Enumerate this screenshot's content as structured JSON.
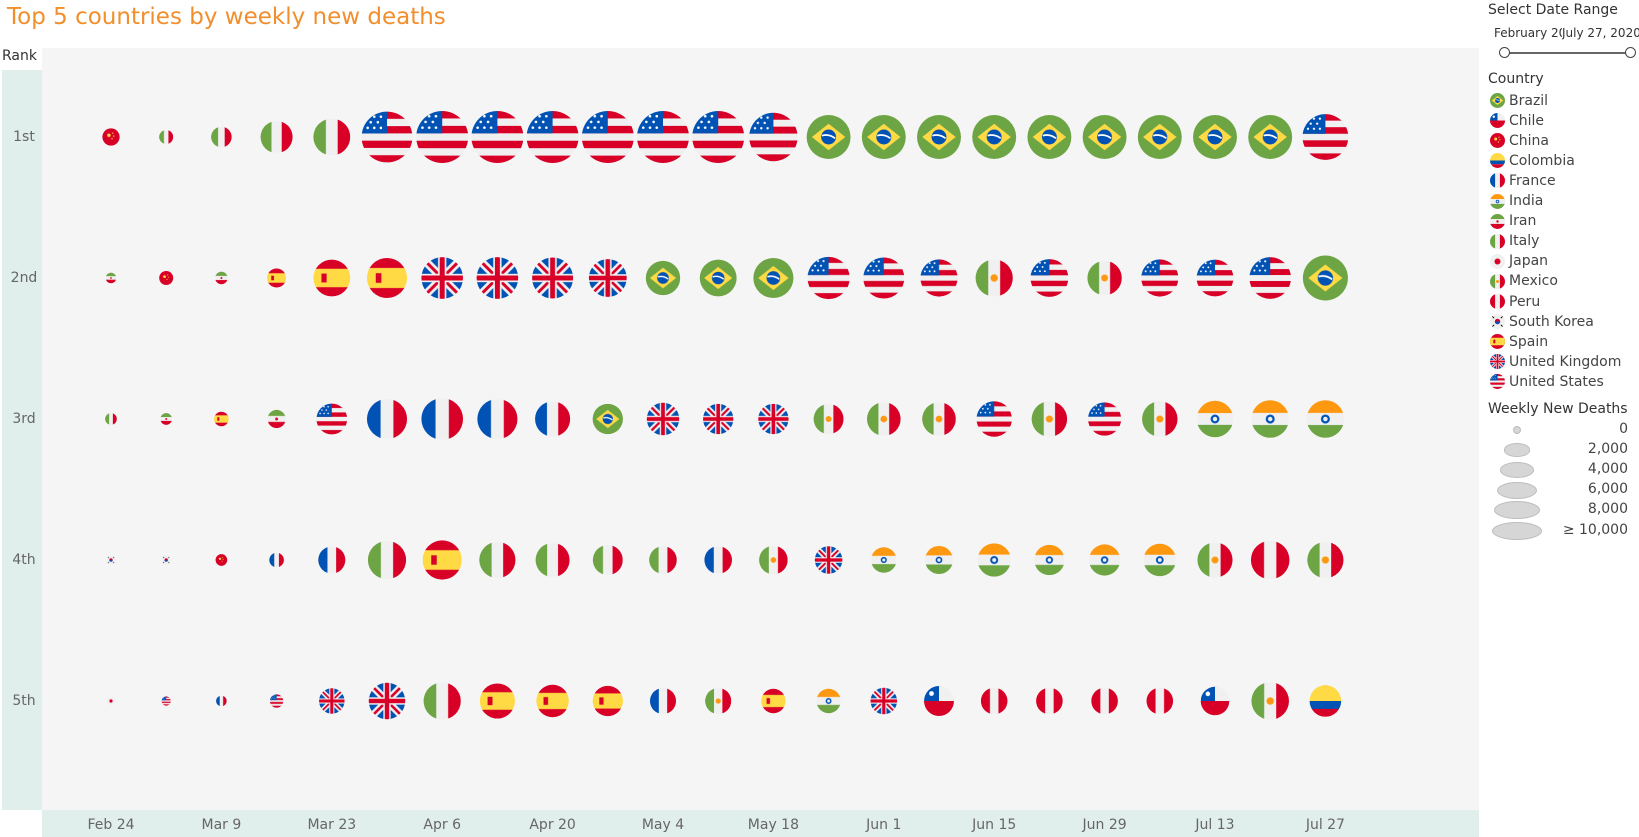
{
  "chart_data": {
    "type": "scatter",
    "title": "Top 5 countries by weekly new deaths",
    "ylabel": "Rank",
    "ranks": [
      "1st",
      "2nd",
      "3rd",
      "4th",
      "5th"
    ],
    "weeks": [
      "Feb 24",
      "Mar 2",
      "Mar 9",
      "Mar 16",
      "Mar 23",
      "Mar 30",
      "Apr 6",
      "Apr 13",
      "Apr 20",
      "Apr 27",
      "May 4",
      "May 11",
      "May 18",
      "May 25",
      "Jun 1",
      "Jun 8",
      "Jun 15",
      "Jun 22",
      "Jun 29",
      "Jul 6",
      "Jul 13",
      "Jul 20",
      "Jul 27"
    ],
    "x_tick_labels": [
      "Feb 24",
      "Mar 9",
      "Mar 23",
      "Apr 6",
      "Apr 20",
      "May 4",
      "May 18",
      "Jun 1",
      "Jun 15",
      "Jun 29",
      "Jul 13",
      "Jul 27"
    ],
    "size_field": "Weekly New Deaths",
    "series": [
      {
        "rank": "1st",
        "countries": [
          "China",
          "Italy",
          "Italy",
          "Italy",
          "Italy",
          "United States",
          "United States",
          "United States",
          "United States",
          "United States",
          "United States",
          "United States",
          "United States",
          "Brazil",
          "Brazil",
          "Brazil",
          "Brazil",
          "Brazil",
          "Brazil",
          "Brazil",
          "Brazil",
          "Brazil",
          "United States"
        ],
        "values": [
          600,
          300,
          1000,
          3200,
          4500,
          9500,
          10000,
          10000,
          10000,
          10000,
          10000,
          10000,
          8500,
          6800,
          6800,
          6800,
          6800,
          6800,
          6800,
          6800,
          6800,
          6800,
          7500
        ]
      },
      {
        "rank": "2nd",
        "countries": [
          "Iran",
          "China",
          "Iran",
          "Spain",
          "Spain",
          "Spain",
          "United Kingdom",
          "United Kingdom",
          "United Kingdom",
          "United Kingdom",
          "Brazil",
          "Brazil",
          "Brazil",
          "United States",
          "United States",
          "United States",
          "Mexico",
          "United States",
          "Mexico",
          "United States",
          "United States",
          "United States",
          "Brazil"
        ],
        "values": [
          100,
          300,
          200,
          800,
          4500,
          5500,
          6000,
          6000,
          5800,
          4800,
          3800,
          4500,
          5500,
          6200,
          5800,
          4600,
          4600,
          4800,
          3800,
          4600,
          4500,
          6000,
          7200
        ]
      },
      {
        "rank": "3rd",
        "countries": [
          "Italy",
          "Iran",
          "Spain",
          "Iran",
          "United States",
          "France",
          "France",
          "France",
          "France",
          "Brazil",
          "United Kingdom",
          "United Kingdom",
          "United Kingdom",
          "Mexico",
          "Mexico",
          "Mexico",
          "United States",
          "Mexico",
          "United States",
          "Mexico",
          "India",
          "India",
          "India"
        ],
        "values": [
          150,
          150,
          350,
          700,
          2900,
          5500,
          6000,
          5500,
          4000,
          2800,
          3300,
          2800,
          2800,
          2700,
          3600,
          3600,
          4100,
          4100,
          3500,
          4100,
          4400,
          4700,
          4700
        ]
      },
      {
        "rank": "4th",
        "countries": [
          "South Korea",
          "South Korea",
          "China",
          "France",
          "France",
          "Italy",
          "Spain",
          "Italy",
          "Italy",
          "Italy",
          "Italy",
          "France",
          "Mexico",
          "United Kingdom",
          "India",
          "India",
          "India",
          "India",
          "India",
          "India",
          "Mexico",
          "Peru",
          "Mexico"
        ],
        "values": [
          50,
          50,
          150,
          350,
          2100,
          4900,
          5200,
          4300,
          3700,
          2700,
          2200,
          2200,
          2400,
          2200,
          1800,
          2300,
          3500,
          2800,
          3000,
          3300,
          4000,
          5000,
          4300
        ]
      },
      {
        "rank": "5th",
        "countries": [
          "Japan",
          "United States",
          "France",
          "United States",
          "United Kingdom",
          "United Kingdom",
          "Italy",
          "Spain",
          "Spain",
          "Spain",
          "France",
          "Mexico",
          "Spain",
          "India",
          "United Kingdom",
          "Chile",
          "Peru",
          "Peru",
          "Peru",
          "Peru",
          "Chile",
          "Mexico",
          "Colombia"
        ],
        "values": [
          20,
          50,
          100,
          250,
          1800,
          4400,
          4600,
          4000,
          3300,
          2800,
          1900,
          1900,
          1600,
          1600,
          2000,
          2700,
          2000,
          2000,
          2000,
          2000,
          2400,
          4700,
          3100
        ]
      }
    ]
  },
  "legend": {
    "date_range": {
      "title": "Select Date Range",
      "start": "February 2020",
      "end": "July 27, 2020"
    },
    "country_title": "Country",
    "countries": [
      {
        "name": "Brazil",
        "icon": "brazil-flag-icon"
      },
      {
        "name": "Chile",
        "icon": "chile-flag-icon"
      },
      {
        "name": "China",
        "icon": "china-flag-icon"
      },
      {
        "name": "Colombia",
        "icon": "colombia-flag-icon"
      },
      {
        "name": "France",
        "icon": "france-flag-icon"
      },
      {
        "name": "India",
        "icon": "india-flag-icon"
      },
      {
        "name": "Iran",
        "icon": "iran-flag-icon"
      },
      {
        "name": "Italy",
        "icon": "italy-flag-icon"
      },
      {
        "name": "Japan",
        "icon": "japan-flag-icon"
      },
      {
        "name": "Mexico",
        "icon": "mexico-flag-icon"
      },
      {
        "name": "Peru",
        "icon": "peru-flag-icon"
      },
      {
        "name": "South Korea",
        "icon": "south-korea-flag-icon"
      },
      {
        "name": "Spain",
        "icon": "spain-flag-icon"
      },
      {
        "name": "United Kingdom",
        "icon": "united-kingdom-flag-icon"
      },
      {
        "name": "United States",
        "icon": "united-states-flag-icon"
      }
    ],
    "size_title": "Weekly New Deaths",
    "sizes": [
      {
        "label": "0",
        "value": 0
      },
      {
        "label": "2,000",
        "value": 2000
      },
      {
        "label": "4,000",
        "value": 4000
      },
      {
        "label": "6,000",
        "value": 6000
      },
      {
        "label": "8,000",
        "value": 8000
      },
      {
        "label": "≥ 10,000",
        "value": 10000
      }
    ]
  }
}
